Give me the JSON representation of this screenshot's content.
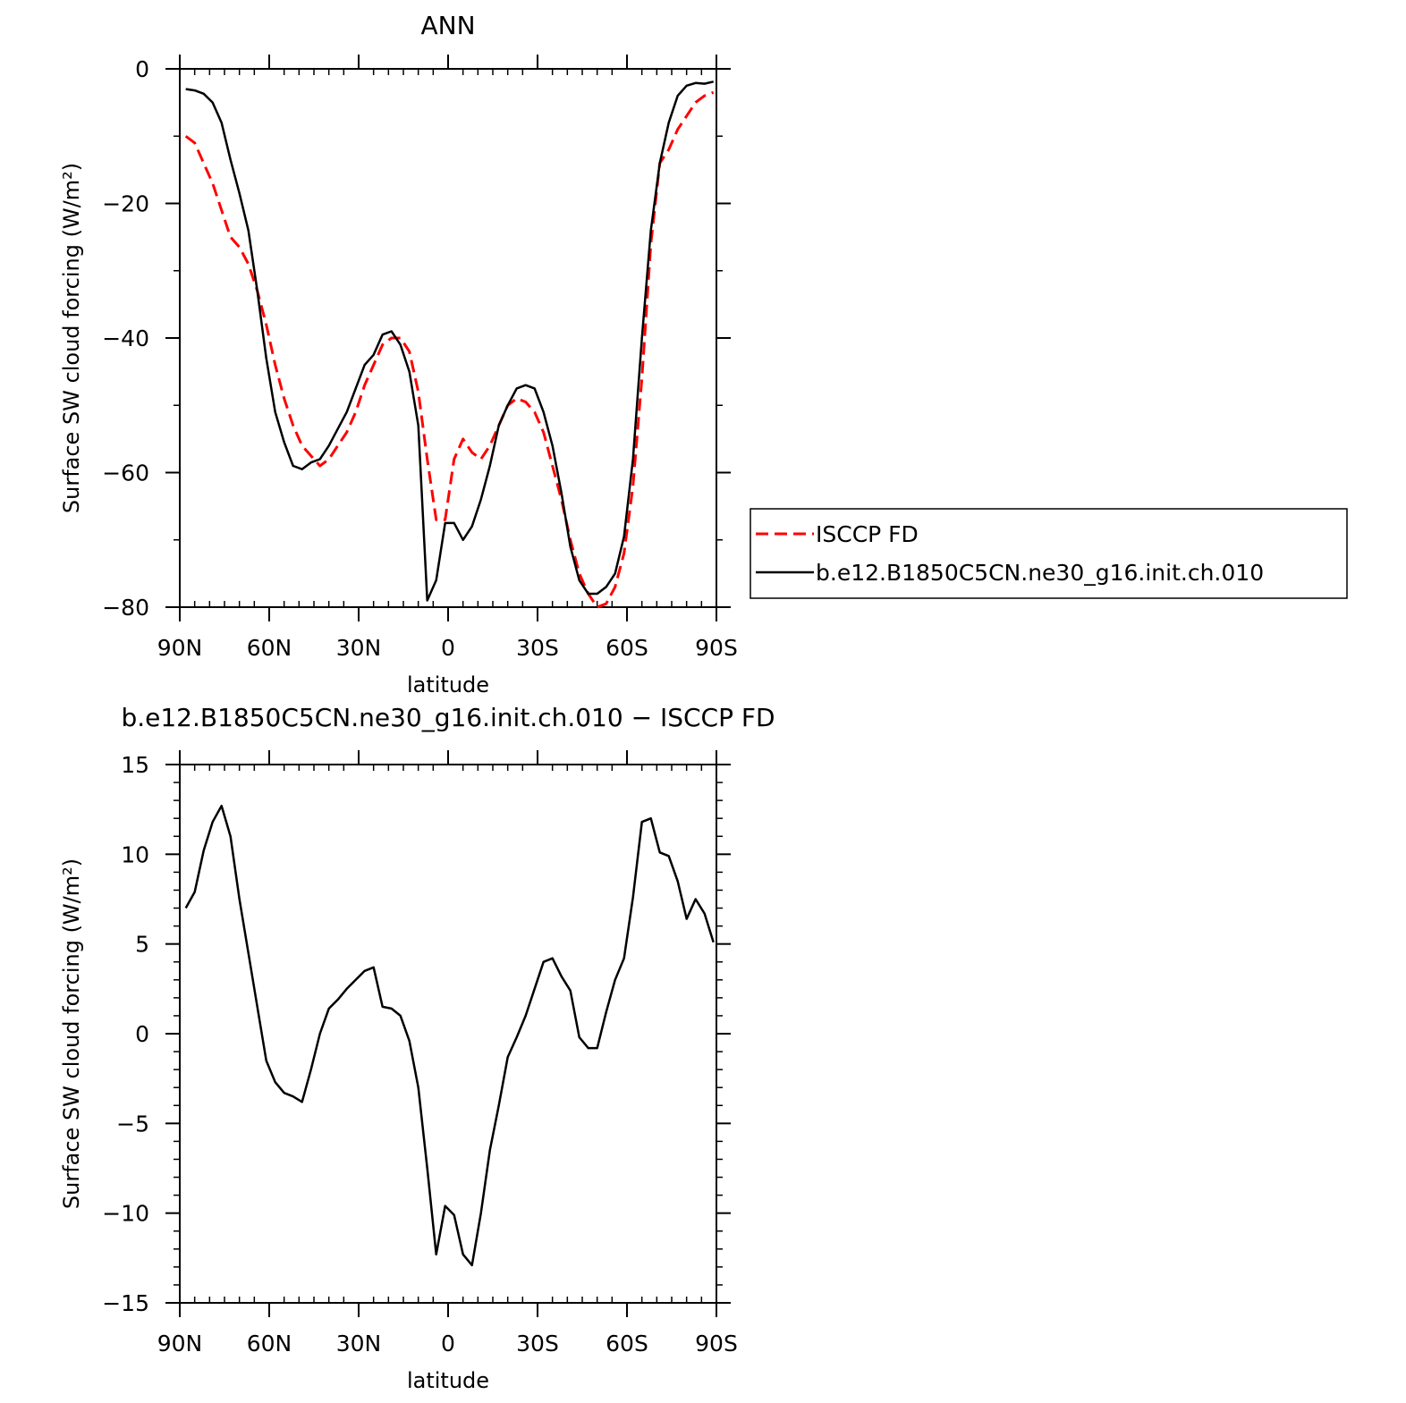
{
  "chart_data": [
    {
      "type": "line",
      "title": "ANN",
      "xlabel": "latitude",
      "ylabel": "Surface SW cloud forcing (W/m²)",
      "xlim": [
        90,
        -90
      ],
      "ylim": [
        -80,
        0
      ],
      "xticks": [
        {
          "value": 90,
          "label": "90N"
        },
        {
          "value": 60,
          "label": "60N"
        },
        {
          "value": 30,
          "label": "30N"
        },
        {
          "value": 0,
          "label": "0"
        },
        {
          "value": -30,
          "label": "30S"
        },
        {
          "value": -60,
          "label": "60S"
        },
        {
          "value": -90,
          "label": "90S"
        }
      ],
      "yticks": [
        {
          "value": 0,
          "label": "0"
        },
        {
          "value": -20,
          "label": "−20"
        },
        {
          "value": -40,
          "label": "−40"
        },
        {
          "value": -60,
          "label": "−60"
        },
        {
          "value": -80,
          "label": "−80"
        }
      ],
      "legend": {
        "placement": "right"
      },
      "series": [
        {
          "name": "ISCCP FD",
          "color": "#ff0000",
          "dash": "dashed",
          "x": [
            88,
            85,
            82,
            79,
            76,
            73,
            70,
            67,
            64,
            61,
            58,
            55,
            52,
            49,
            46,
            43,
            40,
            37,
            34,
            31,
            28,
            25,
            22,
            19,
            16,
            13,
            10,
            7,
            4,
            1,
            -2,
            -5,
            -8,
            -11,
            -14,
            -17,
            -20,
            -23,
            -26,
            -29,
            -32,
            -35,
            -38,
            -41,
            -44,
            -47,
            -50,
            -53,
            -56,
            -59,
            -62,
            -65,
            -68,
            -71,
            -74,
            -77,
            -80,
            -83,
            -86,
            -89
          ],
          "y": [
            -10,
            -11,
            -14,
            -17,
            -21,
            -25,
            -26.5,
            -29,
            -33,
            -38,
            -44,
            -49,
            -53,
            -56,
            -57.5,
            -59,
            -58,
            -56,
            -54,
            -51,
            -47,
            -44,
            -41,
            -40,
            -40,
            -42,
            -48,
            -58,
            -67,
            -67,
            -58,
            -55,
            -57,
            -58,
            -56,
            -53,
            -50,
            -49,
            -49.5,
            -51,
            -54,
            -59,
            -64,
            -70,
            -75,
            -78,
            -80,
            -79.5,
            -77,
            -72,
            -62,
            -46,
            -26,
            -14,
            -12,
            -9,
            -7,
            -5,
            -4,
            -3.5
          ]
        },
        {
          "name": "b.e12.B1850C5CN.ne30_g16.init.ch.010",
          "color": "#000000",
          "dash": "solid",
          "x": [
            88,
            85,
            82,
            79,
            76,
            73,
            70,
            67,
            64,
            61,
            58,
            55,
            52,
            49,
            46,
            43,
            40,
            37,
            34,
            31,
            28,
            25,
            22,
            19,
            16,
            13,
            10,
            7,
            4,
            1,
            -2,
            -5,
            -8,
            -11,
            -14,
            -17,
            -20,
            -23,
            -26,
            -29,
            -32,
            -35,
            -38,
            -41,
            -44,
            -47,
            -50,
            -53,
            -56,
            -59,
            -62,
            -65,
            -68,
            -71,
            -74,
            -77,
            -80,
            -83,
            -86,
            -89
          ],
          "y": [
            -3,
            -3.2,
            -3.7,
            -5,
            -8,
            -13.5,
            -18.5,
            -24,
            -33,
            -43,
            -51,
            -55.5,
            -59,
            -59.5,
            -58.5,
            -58,
            -56,
            -53.5,
            -51,
            -47.5,
            -44,
            -42.5,
            -39.5,
            -39,
            -41,
            -45,
            -53,
            -79,
            -76,
            -67.5,
            -67.5,
            -70,
            -68,
            -64,
            -59,
            -53,
            -50,
            -47.5,
            -47,
            -47.5,
            -51,
            -56,
            -63,
            -71,
            -76,
            -78,
            -78,
            -77,
            -75,
            -69.5,
            -58,
            -40,
            -24,
            -14,
            -8,
            -4,
            -2.5,
            -2.1,
            -2.2,
            -1.9
          ]
        }
      ]
    },
    {
      "type": "line",
      "title": "b.e12.B1850C5CN.ne30_g16.init.ch.010 − ISCCP FD",
      "xlabel": "latitude",
      "ylabel": "Surface SW cloud forcing (W/m²)",
      "xlim": [
        90,
        -90
      ],
      "ylim": [
        -15,
        15
      ],
      "xticks": [
        {
          "value": 90,
          "label": "90N"
        },
        {
          "value": 60,
          "label": "60N"
        },
        {
          "value": 30,
          "label": "30N"
        },
        {
          "value": 0,
          "label": "0"
        },
        {
          "value": -30,
          "label": "30S"
        },
        {
          "value": -60,
          "label": "60S"
        },
        {
          "value": -90,
          "label": "90S"
        }
      ],
      "yticks": [
        {
          "value": 15,
          "label": "15"
        },
        {
          "value": 10,
          "label": "10"
        },
        {
          "value": 5,
          "label": "5"
        },
        {
          "value": 0,
          "label": "0"
        },
        {
          "value": -5,
          "label": "−5"
        },
        {
          "value": -10,
          "label": "−10"
        },
        {
          "value": -15,
          "label": "−15"
        }
      ],
      "series": [
        {
          "color": "#000000",
          "dash": "solid",
          "x": [
            88,
            85,
            82,
            79,
            76,
            73,
            70,
            67,
            64,
            61,
            58,
            55,
            52,
            49,
            46,
            43,
            40,
            37,
            34,
            31,
            28,
            25,
            22,
            19,
            16,
            13,
            10,
            7,
            4,
            1,
            -2,
            -5,
            -8,
            -11,
            -14,
            -17,
            -20,
            -23,
            -26,
            -29,
            -32,
            -35,
            -38,
            -41,
            -44,
            -47,
            -50,
            -53,
            -56,
            -59,
            -62,
            -65,
            -68,
            -71,
            -74,
            -77,
            -80,
            -83,
            -86,
            -89
          ],
          "y": [
            7,
            7.9,
            10.2,
            11.8,
            12.7,
            11,
            7.5,
            4.5,
            1.5,
            -1.5,
            -2.7,
            -3.3,
            -3.5,
            -3.8,
            -2,
            0,
            1.4,
            1.9,
            2.5,
            3,
            3.5,
            3.7,
            1.5,
            1.4,
            1,
            -0.4,
            -3,
            -7.5,
            -12.3,
            -9.6,
            -10.1,
            -12.3,
            -12.9,
            -10,
            -6.5,
            -4,
            -1.3,
            -0.2,
            1,
            2.5,
            4,
            4.2,
            3.2,
            2.4,
            -0.2,
            -0.8,
            -0.8,
            1.2,
            3,
            4.2,
            7.6,
            11.8,
            12,
            10.1,
            9.9,
            8.5,
            6.4,
            7.5,
            6.7,
            5.1
          ]
        }
      ]
    }
  ]
}
